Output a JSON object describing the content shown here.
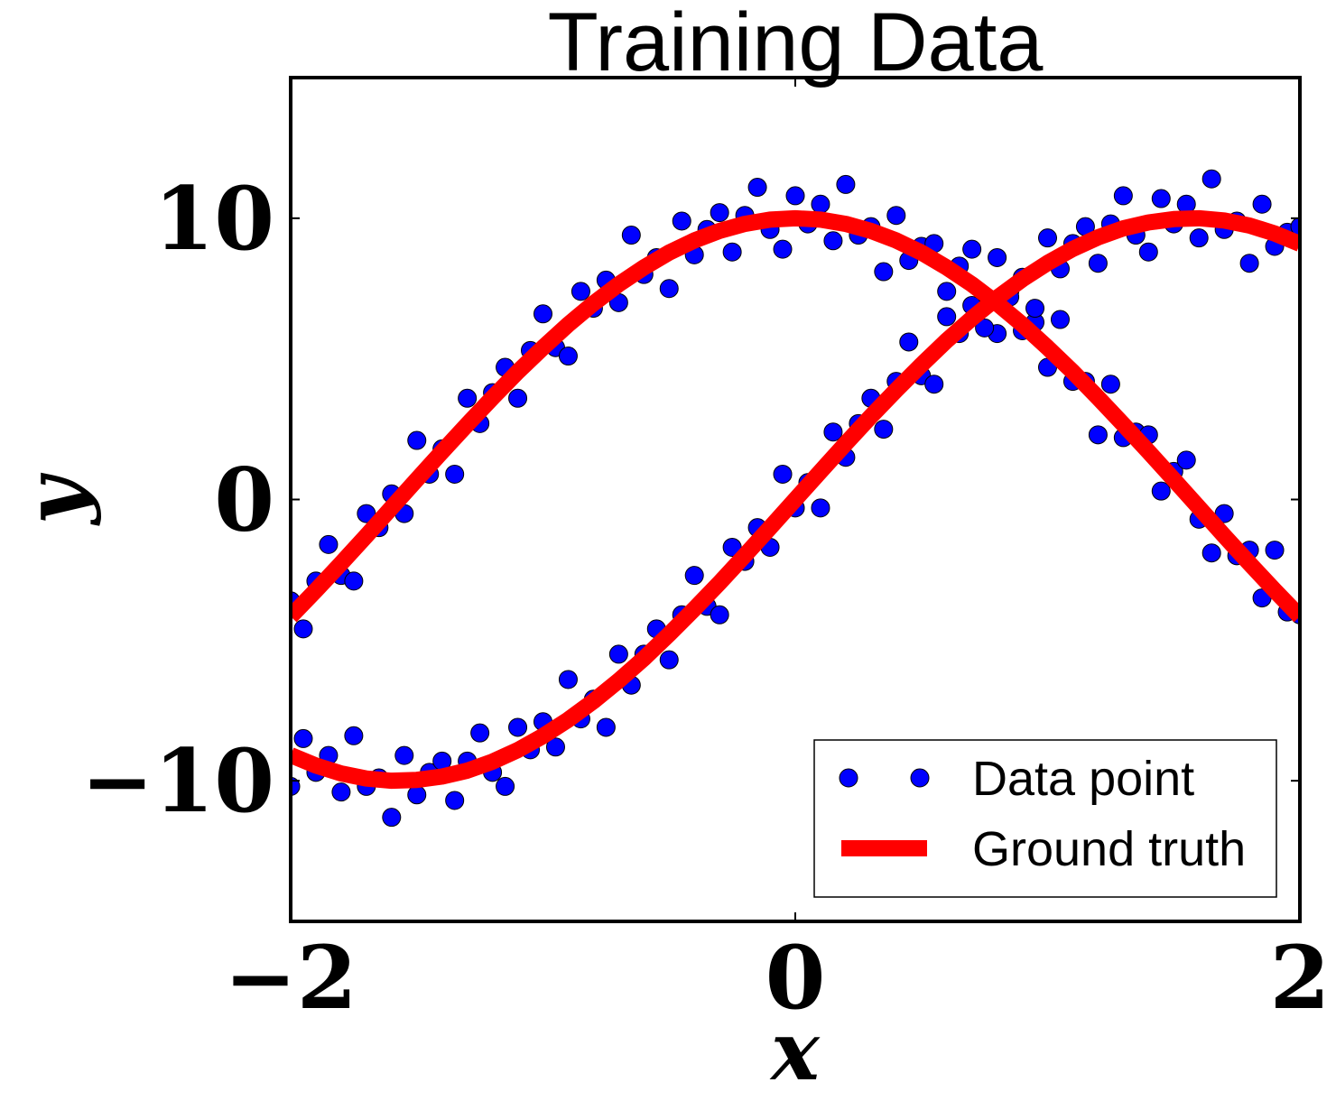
{
  "chart_data": {
    "type": "scatter",
    "title": "Training Data",
    "x_label": "x",
    "y_label": "y",
    "xlim": [
      -2,
      2
    ],
    "ylim": [
      -15,
      15
    ],
    "xticks": [
      {
        "value": -2,
        "label": "−2"
      },
      0,
      2
    ],
    "yticks": [
      {
        "value": -10,
        "label": "−10"
      },
      0,
      10
    ],
    "grid": false,
    "legend": "lower right",
    "series": [
      {
        "name": "Data point",
        "type": "scatter",
        "color": "#0000ff",
        "x": [
          -2,
          -1.95,
          -1.9,
          -1.85,
          -1.8,
          -1.75,
          -1.7,
          -1.65,
          -1.6,
          -1.55,
          -1.5,
          -1.45,
          -1.4,
          -1.35,
          -1.3,
          -1.25,
          -1.2,
          -1.15,
          -1.1,
          -1.05,
          -1,
          -0.95,
          -0.9,
          -0.85,
          -0.8,
          -0.75,
          -0.7,
          -0.65,
          -0.6,
          -0.55,
          -0.5,
          -0.45,
          -0.4,
          -0.35,
          -0.3,
          -0.25,
          -0.2,
          -0.15,
          -0.1,
          -0.05,
          0,
          0.05,
          0.1,
          0.15,
          0.2,
          0.25,
          0.3,
          0.35,
          0.4,
          0.45,
          0.5,
          0.55,
          0.6,
          0.65,
          0.7,
          0.75,
          0.8,
          0.85,
          0.9,
          0.95,
          1,
          1.05,
          1.1,
          1.15,
          1.2,
          1.25,
          1.3,
          1.35,
          1.4,
          1.45,
          1.5,
          1.55,
          1.6,
          1.65,
          1.7,
          1.75,
          1.8,
          1.85,
          1.9,
          1.95,
          2,
          -2,
          -1.95,
          -1.9,
          -1.85,
          -1.8,
          -1.75,
          -1.7,
          -1.65,
          -1.6,
          -1.55,
          -1.5,
          -1.45,
          -1.4,
          -1.35,
          -1.3,
          -1.25,
          -1.2,
          -1.15,
          -1.1,
          -1.05,
          -1,
          -0.95,
          -0.9,
          -0.85,
          -0.8,
          -0.75,
          -0.7,
          -0.65,
          -0.6,
          -0.55,
          -0.5,
          -0.45,
          -0.4,
          -0.35,
          -0.3,
          -0.25,
          -0.2,
          -0.15,
          -0.1,
          -0.05,
          0,
          0.05,
          0.1,
          0.15,
          0.2,
          0.25,
          0.3,
          0.35,
          0.4,
          0.45,
          0.5,
          0.55,
          0.6,
          0.65,
          0.7,
          0.75,
          0.8,
          0.85,
          0.9,
          0.95,
          1,
          1.05,
          1.1,
          1.15,
          1.2,
          1.25,
          1.3,
          1.35,
          1.4,
          1.45,
          1.5,
          1.55,
          1.6,
          1.65,
          1.7,
          1.75,
          1.8,
          1.85,
          1.9,
          1.95,
          2
        ],
        "values": [
          -3.6,
          -4.6,
          -2.9,
          -1.6,
          -2.7,
          -2.9,
          -0.5,
          -1.0,
          0.2,
          -0.5,
          2.1,
          0.9,
          1.8,
          0.9,
          3.6,
          2.7,
          3.8,
          4.7,
          3.6,
          5.3,
          6.6,
          5.4,
          5.1,
          7.4,
          6.8,
          7.8,
          7.0,
          9.4,
          8.0,
          8.6,
          7.5,
          9.9,
          8.7,
          9.6,
          10.2,
          8.8,
          10.1,
          11.1,
          9.6,
          8.9,
          10.8,
          9.8,
          10.5,
          9.2,
          11.2,
          9.4,
          9.7,
          8.1,
          10.1,
          8.5,
          9.0,
          9.1,
          7.4,
          8.3,
          8.9,
          6.9,
          5.9,
          7.4,
          6.0,
          6.3,
          4.7,
          6.4,
          4.2,
          4.2,
          2.3,
          4.1,
          2.2,
          2.4,
          2.3,
          0.3,
          1.0,
          1.4,
          -0.7,
          -1.9,
          -0.5,
          -2.0,
          -1.8,
          -3.5,
          -1.8,
          -4.0,
          -4.1,
          -10.2,
          -8.5,
          -9.7,
          -9.1,
          -10.4,
          -8.4,
          -10.2,
          -9.9,
          -11.3,
          -9.1,
          -10.5,
          -9.7,
          -9.3,
          -10.7,
          -9.3,
          -8.3,
          -9.7,
          -10.2,
          -8.1,
          -8.9,
          -7.9,
          -8.8,
          -6.4,
          -7.8,
          -7.1,
          -8.1,
          -5.5,
          -6.6,
          -5.5,
          -4.6,
          -5.7,
          -4.1,
          -2.7,
          -3.8,
          -4.1,
          -1.7,
          -2.2,
          -1.0,
          -1.7,
          0.9,
          -0.3,
          0.6,
          -0.3,
          2.4,
          1.5,
          2.7,
          3.6,
          2.5,
          4.2,
          5.6,
          4.4,
          4.1,
          6.5,
          5.9,
          6.9,
          6.1,
          8.6,
          7.2,
          7.9,
          6.8,
          9.3,
          8.2,
          9.1,
          9.7,
          8.4,
          9.8,
          10.8,
          9.4,
          8.8,
          10.7,
          9.8,
          10.5,
          9.3,
          11.4,
          9.6,
          9.9,
          8.4,
          10.5,
          9.0,
          9.5,
          9.7
        ]
      },
      {
        "name": "Ground truth",
        "type": "line",
        "color": "#ff0000",
        "x": [
          -2,
          -1.9,
          -1.8,
          -1.7,
          -1.6,
          -1.5,
          -1.4,
          -1.3,
          -1.2,
          -1.1,
          -1,
          -0.9,
          -0.8,
          -0.7,
          -0.6,
          -0.5,
          -0.4,
          -0.3,
          -0.2,
          -0.1,
          0,
          0.1,
          0.2,
          0.3,
          0.4,
          0.5,
          0.6,
          0.7,
          0.8,
          0.9,
          1,
          1.1,
          1.2,
          1.3,
          1.4,
          1.5,
          1.6,
          1.7,
          1.8,
          1.9,
          2
        ],
        "values": [
          -4.16,
          -3.23,
          -2.27,
          -1.29,
          -0.29,
          0.71,
          1.7,
          2.67,
          3.62,
          4.54,
          5.4,
          6.22,
          6.97,
          7.65,
          8.25,
          8.78,
          9.21,
          9.55,
          9.8,
          9.95,
          10,
          9.95,
          9.8,
          9.55,
          9.21,
          8.78,
          8.25,
          7.65,
          6.97,
          6.22,
          5.4,
          4.54,
          3.62,
          2.67,
          1.7,
          0.71,
          -0.29,
          -1.29,
          -2.27,
          -3.23,
          -4.16
        ]
      },
      {
        "type": "line",
        "color": "#ff0000",
        "x": [
          -2,
          -1.9,
          -1.8,
          -1.7,
          -1.6,
          -1.5,
          -1.4,
          -1.3,
          -1.2,
          -1.1,
          -1,
          -0.9,
          -0.8,
          -0.7,
          -0.6,
          -0.5,
          -0.4,
          -0.3,
          -0.2,
          -0.1,
          0,
          0.1,
          0.2,
          0.3,
          0.4,
          0.5,
          0.6,
          0.7,
          0.8,
          0.9,
          1,
          1.1,
          1.2,
          1.3,
          1.4,
          1.5,
          1.6,
          1.7,
          1.8,
          1.9,
          2
        ],
        "values": [
          -9.09,
          -9.46,
          -9.74,
          -9.92,
          -10,
          -9.97,
          -9.85,
          -9.64,
          -9.32,
          -8.91,
          -8.41,
          -7.83,
          -7.17,
          -6.44,
          -5.65,
          -4.79,
          -3.89,
          -2.96,
          -1.99,
          -1,
          0,
          1,
          1.99,
          2.96,
          3.89,
          4.79,
          5.65,
          6.44,
          7.17,
          7.83,
          8.41,
          8.91,
          9.32,
          9.64,
          9.85,
          9.97,
          10,
          9.92,
          9.74,
          9.46,
          9.09
        ]
      }
    ]
  }
}
